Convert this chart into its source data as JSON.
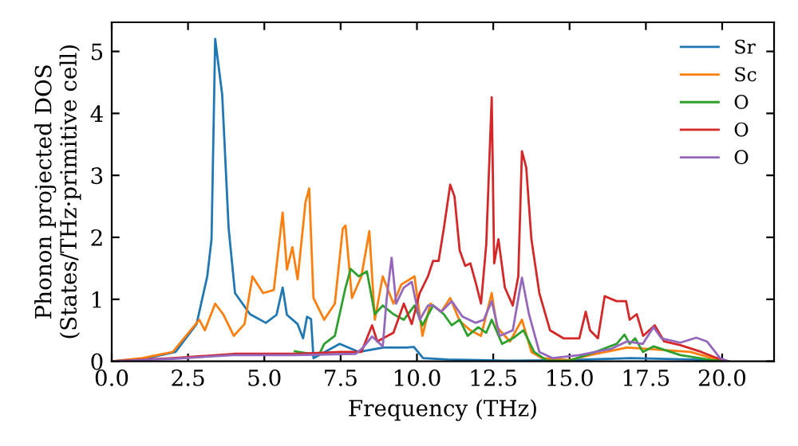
{
  "chart_data": {
    "type": "line",
    "xlabel": "Frequency (THz)",
    "ylabel": "Phonon projected DOS\n(States/THz·primitive cell)",
    "xlim": [
      0,
      21.7
    ],
    "ylim": [
      0,
      5.47
    ],
    "xticks": [
      {
        "value": 0,
        "label": "0.0"
      },
      {
        "value": 2.5,
        "label": "2.5"
      },
      {
        "value": 5,
        "label": "5.0"
      },
      {
        "value": 7.5,
        "label": "7.5"
      },
      {
        "value": 10,
        "label": "10.0"
      },
      {
        "value": 12.5,
        "label": "12.5"
      },
      {
        "value": 15,
        "label": "15.0"
      },
      {
        "value": 17.5,
        "label": "17.5"
      },
      {
        "value": 20,
        "label": "20.0"
      }
    ],
    "yticks": [
      0,
      1,
      2,
      3,
      4,
      5
    ],
    "grid": false,
    "legend": "top right",
    "marker": "none",
    "line_style": "solid",
    "series": [
      {
        "name": "Sr",
        "color": "#1f77b4",
        "x": [
          0,
          1,
          2.09,
          2.78,
          3.13,
          3.27,
          3.39,
          3.62,
          3.83,
          4.04,
          4.53,
          5.05,
          5.4,
          5.6,
          5.74,
          6.09,
          6.27,
          6.4,
          6.53,
          6.61,
          7.47,
          8.1,
          8.9,
          9.66,
          9.9,
          10.2,
          11,
          13,
          15,
          17,
          19,
          20.2
        ],
        "values": [
          0,
          0.03,
          0.15,
          0.6,
          1.37,
          1.97,
          5.2,
          4.3,
          2.15,
          1.1,
          0.76,
          0.62,
          0.75,
          1.19,
          0.75,
          0.6,
          0.37,
          0.72,
          0.68,
          0.05,
          0.28,
          0.15,
          0.22,
          0.22,
          0.23,
          0.05,
          0.03,
          0.01,
          0.02,
          0.05,
          0.03,
          0
        ]
      },
      {
        "name": "Sc",
        "color": "#ff7f0e",
        "x": [
          0,
          1,
          2,
          2.87,
          3.05,
          3.39,
          3.65,
          4.0,
          4.35,
          4.61,
          4.96,
          5.31,
          5.6,
          5.74,
          5.92,
          6.09,
          6.35,
          6.47,
          6.61,
          6.96,
          7.31,
          7.57,
          7.66,
          7.87,
          8.18,
          8.44,
          8.62,
          8.88,
          9.23,
          9.49,
          9.92,
          10.18,
          10.44,
          10.8,
          11.09,
          11.4,
          11.75,
          12.1,
          12.45,
          12.62,
          13.05,
          13.44,
          13.75,
          14.1,
          15,
          15.67,
          16.88,
          17.58,
          18.96,
          19.67,
          20.2
        ],
        "values": [
          0,
          0.05,
          0.15,
          0.67,
          0.5,
          0.93,
          0.76,
          0.41,
          0.6,
          1.37,
          1.1,
          1.15,
          2.4,
          1.48,
          1.84,
          1.32,
          2.57,
          2.79,
          1.02,
          0.67,
          0.93,
          2.14,
          2.19,
          1.02,
          1.37,
          2.1,
          0.67,
          1.37,
          0.93,
          1.24,
          1.37,
          0.41,
          0.93,
          0.8,
          1.02,
          0.65,
          0.5,
          0.41,
          1.1,
          0.55,
          0.32,
          0.67,
          0.15,
          0.05,
          0.02,
          0.1,
          0.22,
          0.2,
          0.15,
          0.05,
          0
        ]
      },
      {
        "name": "O",
        "color": "#2ca02c",
        "x": [
          6,
          6.79,
          6.96,
          7.31,
          7.66,
          7.83,
          8.09,
          8.36,
          8.62,
          8.88,
          9.23,
          9.57,
          9.92,
          10.18,
          10.53,
          10.88,
          11.14,
          11.4,
          11.66,
          12.01,
          12.27,
          12.45,
          12.79,
          13.14,
          13.49,
          13.84,
          14.27,
          15,
          15.84,
          16.54,
          16.8,
          16.97,
          17.15,
          17.4,
          17.75,
          18.63,
          19.67,
          20.2
        ],
        "values": [
          0.16,
          0.1,
          0.28,
          0.41,
          1.19,
          1.49,
          1.37,
          1.45,
          0.76,
          0.9,
          0.76,
          0.67,
          0.9,
          0.58,
          0.9,
          0.76,
          0.58,
          0.67,
          0.41,
          0.55,
          0.46,
          0.67,
          0.28,
          0.37,
          0.5,
          0.15,
          0.01,
          0.01,
          0.15,
          0.28,
          0.43,
          0.28,
          0.37,
          0.15,
          0.24,
          0.1,
          0.02,
          0
        ]
      },
      {
        "name": "O",
        "color": "#d62728",
        "x": [
          0,
          2,
          4,
          6,
          7.5,
          8.18,
          8.53,
          8.7,
          9.23,
          9.57,
          9.83,
          10.09,
          10.36,
          10.53,
          10.71,
          10.88,
          11.09,
          11.23,
          11.4,
          11.58,
          11.75,
          11.92,
          12.1,
          12.27,
          12.45,
          12.53,
          12.67,
          12.88,
          13.14,
          13.32,
          13.44,
          13.58,
          13.75,
          14.01,
          14.36,
          14.8,
          15.32,
          15.53,
          15.67,
          15.93,
          16.15,
          16.54,
          16.85,
          16.97,
          17.2,
          17.41,
          17.79,
          18.1,
          18.63,
          19.32,
          19.84,
          20.2
        ],
        "values": [
          0,
          0.05,
          0.12,
          0.12,
          0.15,
          0.15,
          0.58,
          0.32,
          0.46,
          0.93,
          0.6,
          1.1,
          1.37,
          1.62,
          1.62,
          2.14,
          2.85,
          2.66,
          1.79,
          1.54,
          1.58,
          1.28,
          0.93,
          1.88,
          4.26,
          1.58,
          1.97,
          1.19,
          0.9,
          1.37,
          3.39,
          3.13,
          1.97,
          1.1,
          0.5,
          0.37,
          0.37,
          0.8,
          0.5,
          0.37,
          1.05,
          0.97,
          0.97,
          0.67,
          0.76,
          0.41,
          0.58,
          0.32,
          0.26,
          0.15,
          0.05,
          0
        ]
      },
      {
        "name": "O",
        "color": "#9467bd",
        "x": [
          0,
          2,
          4,
          6,
          8,
          8.27,
          8.53,
          8.88,
          9.01,
          9.17,
          9.32,
          9.57,
          9.83,
          10.09,
          10.36,
          10.53,
          10.8,
          11.14,
          11.49,
          11.92,
          12.19,
          12.45,
          12.71,
          13.14,
          13.44,
          13.67,
          14.01,
          14.45,
          15.32,
          16.36,
          16.88,
          17.4,
          17.75,
          18.01,
          18.63,
          19.15,
          19.5,
          19.93,
          20.2
        ],
        "values": [
          0,
          0.04,
          0.1,
          0.1,
          0.12,
          0.24,
          0.4,
          0.24,
          1.02,
          1.67,
          0.93,
          1.19,
          1.28,
          0.67,
          0.9,
          0.9,
          0.8,
          0.97,
          0.72,
          0.62,
          0.67,
          0.97,
          0.41,
          0.5,
          1.35,
          0.76,
          0.15,
          0.05,
          0.1,
          0.2,
          0.32,
          0.28,
          0.55,
          0.37,
          0.3,
          0.38,
          0.32,
          0.05,
          0
        ]
      }
    ]
  }
}
